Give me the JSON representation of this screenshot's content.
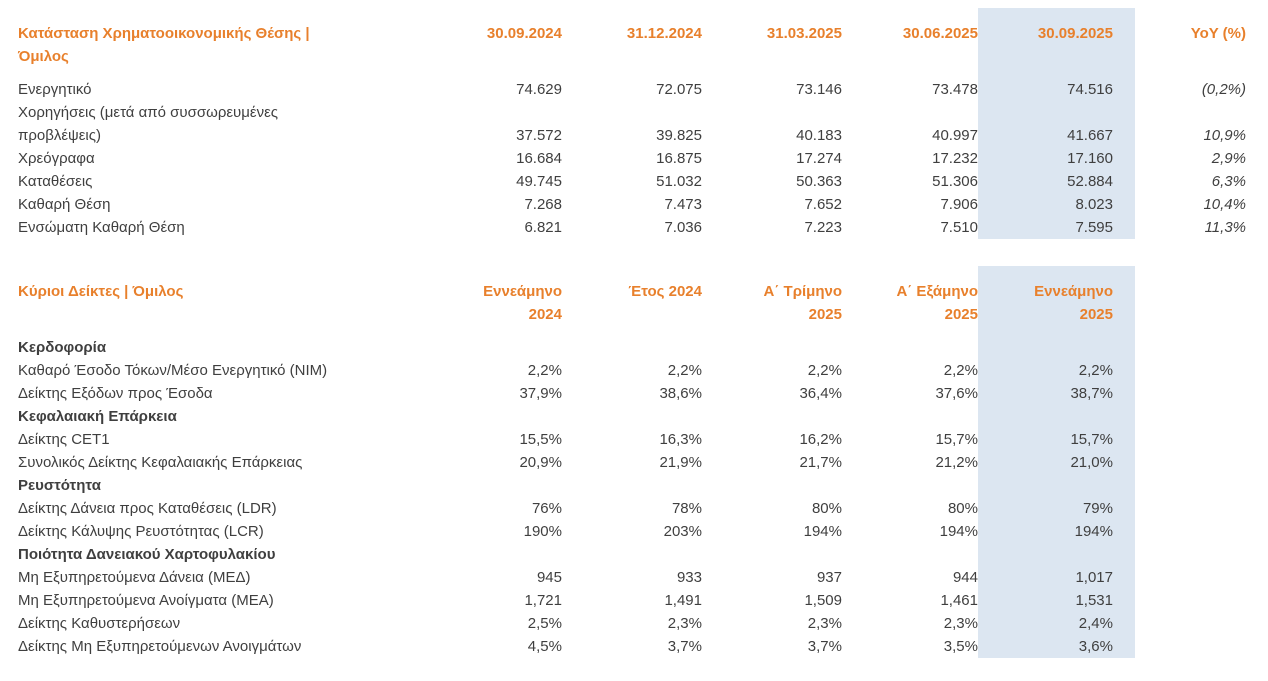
{
  "colors": {
    "accent_orange": "#E8802C",
    "highlight_blue": "#DCE6F1",
    "text": "#3F3F3F"
  },
  "table1": {
    "title": "Κατάσταση Χρηματοοικονομικής Θέσης |\nΌμιλος",
    "columns": [
      "30.09.2024",
      "31.12.2024",
      "31.03.2025",
      "30.06.2025",
      "30.09.2025",
      "YoY (%)"
    ],
    "highlight_column": "30.09.2025",
    "rows": [
      {
        "label": "Ενεργητικό",
        "values": [
          "74.629",
          "72.075",
          "73.146",
          "73.478",
          "74.516"
        ],
        "yoy": "(0,2%)"
      },
      {
        "label": "Χορηγήσεις (μετά από συσσωρευμένες\nπροβλέψεις)",
        "values": [
          "37.572",
          "39.825",
          "40.183",
          "40.997",
          "41.667"
        ],
        "yoy": "10,9%"
      },
      {
        "label": "Χρεόγραφα",
        "values": [
          "16.684",
          "16.875",
          "17.274",
          "17.232",
          "17.160"
        ],
        "yoy": "2,9%"
      },
      {
        "label": "Καταθέσεις",
        "values": [
          "49.745",
          "51.032",
          "50.363",
          "51.306",
          "52.884"
        ],
        "yoy": "6,3%"
      },
      {
        "label": "Καθαρή Θέση",
        "values": [
          "7.268",
          "7.473",
          "7.652",
          "7.906",
          "8.023"
        ],
        "yoy": "10,4%"
      },
      {
        "label": "Ενσώματη Καθαρή Θέση",
        "values": [
          "6.821",
          "7.036",
          "7.223",
          "7.510",
          "7.595"
        ],
        "yoy": "11,3%"
      }
    ]
  },
  "table2": {
    "title": "Κύριοι Δείκτες | Όμιλος",
    "columns": [
      "Εννεάμηνο\n2024",
      "Έτος 2024",
      "Α΄ Τρίμηνο\n2025",
      "Α΄ Εξάμηνο\n2025",
      "Εννεάμηνο\n2025"
    ],
    "highlight_column": "Εννεάμηνο\n2025",
    "rows": [
      {
        "section": true,
        "label": "Κερδοφορία"
      },
      {
        "label": "Καθαρό Έσοδο Τόκων/Μέσο Ενεργητικό (ΝΙΜ)",
        "values": [
          "2,2%",
          "2,2%",
          "2,2%",
          "2,2%",
          "2,2%"
        ]
      },
      {
        "label": "Δείκτης Εξόδων προς Έσοδα",
        "values": [
          "37,9%",
          "38,6%",
          "36,4%",
          "37,6%",
          "38,7%"
        ]
      },
      {
        "section": true,
        "label": "Κεφαλαιακή Επάρκεια"
      },
      {
        "label": "Δείκτης CET1",
        "values": [
          "15,5%",
          "16,3%",
          "16,2%",
          "15,7%",
          "15,7%"
        ]
      },
      {
        "label": "Συνολικός Δείκτης Κεφαλαιακής Επάρκειας",
        "values": [
          "20,9%",
          "21,9%",
          "21,7%",
          "21,2%",
          "21,0%"
        ]
      },
      {
        "section": true,
        "label": "Ρευστότητα"
      },
      {
        "label": "Δείκτης Δάνεια προς Καταθέσεις (LDR)",
        "values": [
          "76%",
          "78%",
          "80%",
          "80%",
          "79%"
        ]
      },
      {
        "label": "Δείκτης Κάλυψης Ρευστότητας (LCR)",
        "values": [
          "190%",
          "203%",
          "194%",
          "194%",
          "194%"
        ]
      },
      {
        "section": true,
        "label": "Ποιότητα Δανειακού Χαρτοφυλακίου"
      },
      {
        "label": "Μη Εξυπηρετούμενα Δάνεια (ΜΕΔ)",
        "values": [
          "945",
          "933",
          "937",
          "944",
          "1,017"
        ]
      },
      {
        "label": "Μη Εξυπηρετούμενα Ανοίγματα (ΜΕΑ)",
        "values": [
          "1,721",
          "1,491",
          "1,509",
          "1,461",
          "1,531"
        ]
      },
      {
        "label": "Δείκτης Καθυστερήσεων",
        "values": [
          "2,5%",
          "2,3%",
          "2,3%",
          "2,3%",
          "2,4%"
        ]
      },
      {
        "label": "Δείκτης Μη Εξυπηρετούμενων Ανοιγμάτων",
        "values": [
          "4,5%",
          "3,7%",
          "3,7%",
          "3,5%",
          "3,6%"
        ]
      }
    ]
  }
}
